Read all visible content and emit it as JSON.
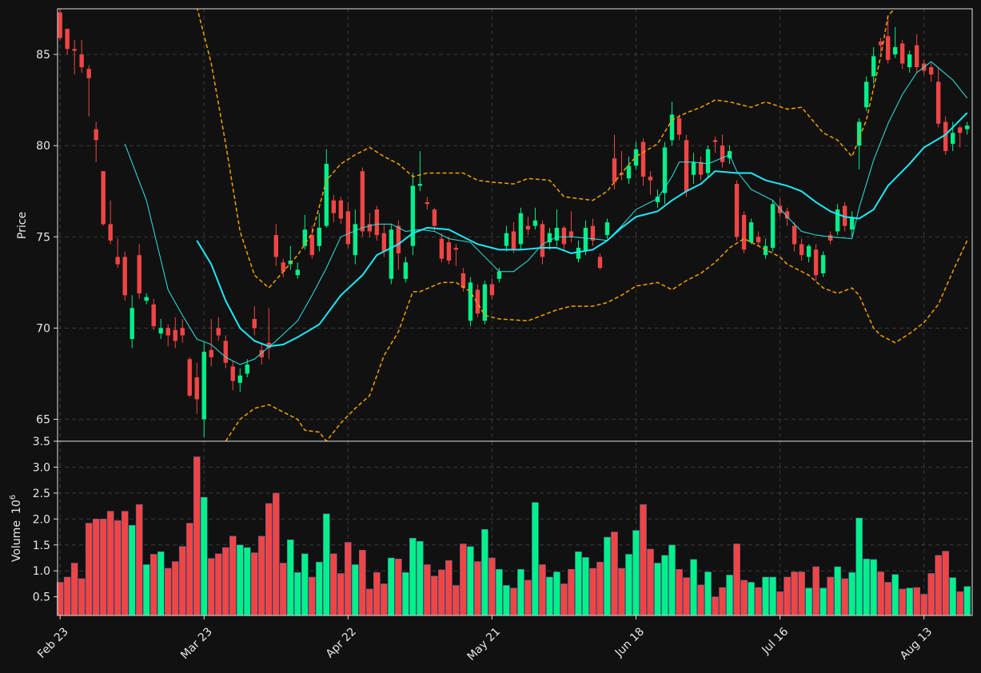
{
  "chart_data": {
    "type": "candlestick",
    "ylabel": "Price",
    "grid": true,
    "up_color": "#00f08a",
    "down_color": "#f04545",
    "ylim": [
      63.8,
      87.5
    ],
    "yticks": [
      65,
      70,
      75,
      80,
      85
    ],
    "categories": [
      "Feb 23",
      null,
      null,
      null,
      null,
      null,
      null,
      null,
      null,
      null,
      null,
      null,
      null,
      null,
      null,
      null,
      null,
      null,
      null,
      null,
      "Mar 23",
      null,
      null,
      null,
      null,
      null,
      null,
      null,
      null,
      null,
      null,
      null,
      null,
      null,
      null,
      null,
      null,
      null,
      null,
      null,
      "Apr 22",
      null,
      null,
      null,
      null,
      null,
      null,
      null,
      null,
      null,
      null,
      null,
      null,
      null,
      null,
      null,
      null,
      null,
      null,
      null,
      "May 21",
      null,
      null,
      null,
      null,
      null,
      null,
      null,
      null,
      null,
      null,
      null,
      null,
      null,
      null,
      null,
      null,
      null,
      null,
      null,
      "Jun 18",
      null,
      null,
      null,
      null,
      null,
      null,
      null,
      null,
      null,
      null,
      null,
      null,
      null,
      null,
      null,
      null,
      null,
      null,
      null,
      "Jul 16",
      null,
      null,
      null,
      null,
      null,
      null,
      null,
      null,
      null,
      null,
      null,
      null,
      null,
      null,
      null,
      null,
      null,
      null,
      null,
      "Aug 13",
      null,
      null,
      null,
      null,
      null,
      null
    ],
    "open": [
      87.3,
      86.4,
      85.3,
      85.0,
      84.2,
      80.9,
      78.6,
      75.7,
      73.9,
      73.9,
      69.4,
      74.0,
      71.5,
      71.3,
      69.7,
      70.0,
      69.9,
      70.0,
      68.3,
      67.3,
      65.0,
      68.8,
      70.0,
      69.3,
      67.9,
      67.0,
      67.5,
      70.5,
      68.8,
      69.2,
      75.1,
      73.6,
      73.5,
      72.9,
      74.5,
      75.1,
      74.5,
      75.6,
      77.0,
      77.0,
      76.4,
      74.0,
      78.6,
      75.7,
      76.5,
      75.2,
      72.7,
      75.6,
      72.7,
      74.5,
      77.8,
      76.9,
      76.5,
      74.9,
      74.7,
      74.4,
      73.0,
      70.4,
      72.1,
      70.4,
      72.4,
      72.7,
      74.5,
      75.3,
      74.6,
      75.6,
      75.6,
      75.7,
      74.7,
      74.8,
      75.5,
      75.3,
      73.8,
      74.2,
      75.6,
      73.9,
      75.1,
      79.3,
      78.5,
      78.2,
      78.9,
      80.2,
      78.3,
      76.9,
      77.4,
      80.3,
      81.5,
      80.3,
      78.4,
      79.1,
      78.5,
      80.3,
      80.0,
      79.3,
      77.9,
      76.2,
      74.7,
      75.0,
      74.0,
      74.4,
      76.7,
      76.4,
      75.6,
      74.6,
      73.9,
      74.3,
      73.0,
      75.1,
      75.3,
      76.7,
      75.4,
      80.0,
      82.1,
      83.8,
      85.7,
      86.0,
      85.0,
      85.6,
      84.3,
      85.5,
      84.5,
      84.3,
      83.5,
      81.3,
      80.1,
      81.0,
      80.9
    ],
    "high": [
      87.5,
      86.4,
      85.8,
      85.8,
      84.4,
      81.3,
      78.6,
      77.0,
      74.9,
      74.2,
      71.8,
      74.6,
      71.9,
      71.6,
      70.5,
      70.2,
      70.6,
      70.5,
      68.4,
      68.1,
      69.2,
      70.5,
      70.6,
      69.6,
      68.2,
      67.8,
      68.3,
      71.2,
      69.2,
      71.1,
      75.7,
      73.8,
      74.5,
      73.6,
      76.2,
      75.6,
      76.3,
      79.8,
      77.3,
      77.2,
      76.9,
      76.5,
      78.8,
      76.3,
      76.7,
      75.7,
      75.7,
      75.9,
      73.9,
      78.5,
      79.7,
      77.2,
      76.6,
      75.2,
      75.0,
      74.6,
      73.3,
      72.8,
      72.4,
      72.6,
      72.7,
      73.3,
      75.6,
      75.8,
      76.6,
      76.1,
      76.6,
      75.9,
      75.5,
      76.5,
      75.6,
      76.4,
      74.8,
      75.9,
      76.0,
      74.1,
      76.0,
      80.6,
      79.7,
      79.4,
      80.2,
      80.4,
      78.6,
      77.6,
      80.2,
      82.4,
      81.7,
      80.6,
      79.6,
      79.4,
      80.0,
      80.5,
      80.6,
      80.0,
      78.1,
      76.4,
      76.0,
      75.3,
      74.9,
      77.0,
      77.1,
      76.6,
      75.8,
      74.9,
      74.6,
      74.6,
      74.2,
      75.3,
      76.8,
      76.9,
      76.4,
      81.5,
      83.8,
      85.4,
      85.9,
      87.1,
      86.5,
      85.8,
      85.2,
      86.1,
      84.7,
      84.5,
      84.3,
      81.6,
      81.3,
      81.1,
      81.3
    ],
    "low": [
      85.8,
      85.0,
      83.9,
      84.0,
      81.6,
      79.1,
      75.6,
      74.6,
      73.3,
      71.5,
      68.9,
      71.6,
      71.3,
      69.9,
      69.4,
      69.0,
      68.9,
      69.2,
      66.2,
      65.3,
      64.0,
      67.9,
      69.3,
      67.8,
      66.6,
      66.5,
      67.3,
      69.6,
      68.0,
      68.3,
      73.4,
      72.8,
      73.2,
      72.7,
      74.3,
      73.8,
      74.2,
      75.5,
      75.8,
      75.7,
      74.4,
      73.5,
      75.0,
      75.0,
      74.8,
      73.9,
      72.4,
      73.2,
      72.5,
      74.0,
      77.5,
      76.5,
      75.3,
      73.6,
      73.5,
      73.4,
      72.0,
      70.1,
      70.6,
      70.2,
      71.6,
      72.5,
      74.2,
      74.1,
      74.3,
      75.1,
      75.4,
      73.5,
      74.3,
      74.5,
      74.3,
      74.7,
      73.6,
      74.0,
      74.5,
      73.2,
      74.9,
      77.6,
      78.1,
      77.9,
      78.7,
      77.8,
      77.3,
      76.6,
      76.8,
      80.0,
      80.3,
      77.2,
      77.9,
      78.1,
      78.2,
      79.6,
      78.8,
      79.0,
      74.8,
      74.1,
      74.6,
      74.5,
      73.8,
      74.2,
      76.1,
      75.6,
      74.2,
      73.7,
      73.6,
      72.6,
      72.8,
      74.6,
      75.1,
      75.3,
      75.0,
      78.7,
      81.9,
      83.4,
      85.1,
      84.5,
      84.8,
      84.2,
      84.0,
      84.0,
      83.9,
      83.5,
      81.0,
      79.5,
      79.7,
      79.9,
      80.6
    ],
    "close": [
      85.9,
      85.3,
      85.2,
      84.3,
      83.7,
      80.3,
      75.7,
      74.8,
      73.5,
      71.8,
      71.1,
      71.9,
      71.7,
      70.1,
      70.0,
      69.6,
      69.3,
      69.6,
      66.3,
      66.1,
      68.7,
      68.4,
      69.6,
      68.1,
      67.1,
      67.4,
      68.0,
      70.0,
      68.4,
      68.9,
      73.9,
      73.1,
      73.7,
      73.2,
      75.4,
      74.0,
      75.5,
      79.0,
      76.3,
      76.0,
      74.6,
      75.7,
      75.3,
      75.3,
      75.1,
      74.2,
      75.4,
      74.1,
      73.6,
      77.8,
      77.9,
      76.8,
      75.6,
      73.8,
      73.7,
      74.3,
      72.2,
      72.5,
      70.8,
      72.4,
      71.8,
      73.1,
      75.2,
      74.3,
      76.3,
      75.4,
      75.9,
      73.9,
      75.2,
      75.5,
      74.6,
      75.0,
      74.4,
      75.5,
      74.8,
      73.3,
      75.8,
      78.0,
      78.4,
      78.9,
      79.8,
      78.3,
      78.1,
      77.2,
      79.9,
      81.7,
      80.6,
      77.5,
      79.1,
      78.4,
      79.8,
      80.2,
      79.1,
      79.7,
      75.0,
      74.3,
      75.8,
      74.7,
      74.5,
      76.8,
      76.3,
      76.0,
      74.6,
      74.0,
      74.5,
      72.9,
      74.0,
      74.8,
      76.5,
      75.6,
      76.1,
      81.3,
      83.5,
      84.9,
      85.5,
      84.7,
      85.4,
      84.5,
      85.0,
      84.3,
      84.1,
      83.9,
      81.2,
      79.7,
      80.7,
      80.7,
      81.1
    ],
    "overlays": [
      {
        "type": "line",
        "color": "#2ee6e6",
        "width": 1,
        "dashed": false,
        "x": [
          9,
          12,
          15,
          17,
          19,
          21,
          23,
          25,
          27,
          30,
          33,
          35,
          37,
          39,
          42,
          44,
          46,
          48,
          50,
          52,
          54,
          57,
          59,
          61,
          63,
          65,
          67,
          69,
          71,
          74,
          76,
          78,
          80,
          83,
          85,
          86,
          88,
          90,
          93,
          94,
          96,
          99,
          101,
          103,
          105,
          107,
          110,
          111,
          113,
          115,
          117,
          119,
          121,
          124,
          126
        ],
        "values": [
          80.1,
          77.0,
          72.1,
          70.7,
          69.4,
          69.1,
          68.4,
          68.0,
          68.3,
          69.3,
          70.4,
          71.8,
          73.3,
          75.0,
          75.5,
          75.7,
          75.7,
          75.3,
          75.4,
          75.3,
          74.9,
          74.7,
          73.9,
          73.1,
          73.1,
          73.7,
          74.6,
          75.0,
          75.0,
          74.9,
          74.8,
          75.6,
          76.5,
          77.1,
          78.3,
          79.1,
          79.1,
          79.0,
          79.5,
          78.6,
          77.6,
          77.0,
          76.1,
          75.3,
          75.1,
          75.0,
          74.9,
          76.6,
          79.2,
          81.2,
          82.8,
          84.0,
          84.6,
          83.6,
          82.6
        ]
      },
      {
        "type": "line",
        "color": "#1ee8f5",
        "width": 2,
        "dashed": false,
        "x": [
          19,
          21,
          23,
          25,
          27,
          29,
          31,
          33,
          36,
          39,
          42,
          44,
          47,
          49,
          51,
          54,
          56,
          58,
          61,
          64,
          67,
          69,
          71,
          74,
          76,
          78,
          80,
          83,
          85,
          87,
          89,
          91,
          94,
          96,
          98,
          101,
          103,
          105,
          107,
          109,
          111,
          113,
          115,
          118,
          120,
          123,
          126
        ],
        "values": [
          74.8,
          73.5,
          71.5,
          70.0,
          69.3,
          69.0,
          69.1,
          69.5,
          70.2,
          71.8,
          72.9,
          74.0,
          74.6,
          75.2,
          75.5,
          75.4,
          75.0,
          74.6,
          74.3,
          74.3,
          74.4,
          74.4,
          74.1,
          74.3,
          74.8,
          75.5,
          76.1,
          76.4,
          77.0,
          77.5,
          77.9,
          78.6,
          78.5,
          78.5,
          78.1,
          77.8,
          77.5,
          76.9,
          76.4,
          76.1,
          76.0,
          76.5,
          77.8,
          79.0,
          79.9,
          80.6,
          81.8
        ]
      },
      {
        "type": "line",
        "color": "#f5a000",
        "width": 1.5,
        "dashed": true,
        "x": [
          19,
          21,
          23,
          25,
          27,
          29,
          31,
          33,
          35,
          37,
          39,
          41,
          43,
          45,
          47,
          49,
          51,
          54,
          56,
          58,
          60,
          63,
          65,
          68,
          70,
          74,
          76,
          78,
          80,
          83,
          85,
          87,
          89,
          91,
          93,
          96,
          98,
          101,
          103,
          106,
          108,
          110,
          112,
          114,
          115,
          117
        ],
        "values": [
          87.6,
          84.5,
          80.1,
          75.3,
          72.9,
          72.2,
          73.1,
          74.0,
          75.2,
          78.1,
          79.0,
          79.5,
          79.9,
          79.4,
          79.0,
          78.3,
          78.5,
          78.5,
          78.5,
          78.1,
          78.0,
          77.9,
          78.2,
          78.1,
          77.2,
          77.0,
          77.5,
          78.5,
          79.4,
          80.1,
          81.4,
          81.8,
          82.1,
          82.5,
          82.4,
          82.1,
          82.4,
          82.0,
          82.1,
          80.7,
          80.3,
          79.4,
          81.4,
          84.9,
          87.1,
          88.0
        ]
      },
      {
        "type": "line",
        "color": "#f5a000",
        "width": 1.5,
        "dashed": true,
        "x": [
          23,
          25,
          27,
          29,
          31,
          33,
          34,
          36,
          37,
          39,
          41,
          43,
          45,
          47,
          49,
          50,
          53,
          55,
          57,
          59,
          61,
          65,
          67,
          69,
          71,
          74,
          76,
          78,
          80,
          83,
          85,
          87,
          89,
          91,
          93,
          95,
          98,
          100,
          101,
          104,
          106,
          108,
          110,
          111,
          113,
          114,
          116,
          118,
          120,
          122,
          124,
          126
        ],
        "values": [
          63.8,
          65.0,
          65.6,
          65.8,
          65.4,
          65.0,
          64.4,
          64.3,
          63.8,
          64.8,
          65.6,
          66.3,
          68.5,
          69.8,
          72.0,
          72.0,
          72.5,
          72.5,
          72.0,
          70.7,
          70.5,
          70.4,
          70.7,
          71.0,
          71.2,
          71.2,
          71.4,
          71.8,
          72.3,
          72.5,
          72.1,
          72.6,
          73.0,
          73.6,
          74.4,
          74.9,
          74.3,
          73.9,
          73.5,
          72.9,
          72.2,
          71.9,
          72.2,
          71.8,
          70.0,
          69.6,
          69.2,
          69.7,
          70.3,
          71.3,
          73.1,
          74.8
        ]
      }
    ],
    "volume": {
      "ylabel": "Volume",
      "scale_base": "10",
      "scale_exp": 6,
      "ylim": [
        0.14,
        3.5
      ],
      "yticks": [
        0.5,
        {
          "value": 1,
          "label": "1.0"
        },
        1.5,
        {
          "value": 2,
          "label": "2.0"
        },
        2.5,
        {
          "value": 3,
          "label": "3.0"
        },
        3.5
      ],
      "values": [
        0.78,
        0.88,
        1.15,
        0.85,
        1.92,
        2.0,
        2.0,
        2.15,
        1.97,
        2.15,
        1.88,
        2.28,
        1.12,
        1.32,
        1.37,
        1.05,
        1.18,
        1.47,
        1.92,
        3.2,
        2.42,
        1.24,
        1.33,
        1.45,
        1.67,
        1.5,
        1.45,
        1.35,
        1.67,
        2.3,
        2.5,
        1.15,
        1.6,
        0.97,
        1.33,
        0.88,
        1.17,
        2.1,
        1.33,
        0.95,
        1.55,
        1.12,
        1.4,
        0.65,
        0.97,
        0.75,
        1.25,
        1.23,
        0.97,
        1.63,
        1.57,
        1.12,
        0.9,
        1.02,
        1.2,
        0.72,
        1.52,
        1.47,
        1.18,
        1.8,
        1.25,
        1.03,
        0.72,
        0.67,
        1.03,
        0.82,
        2.32,
        1.12,
        0.88,
        0.98,
        0.75,
        1.03,
        1.37,
        1.26,
        1.05,
        1.17,
        1.65,
        1.75,
        1.05,
        1.32,
        1.78,
        2.28,
        1.42,
        1.15,
        1.3,
        1.5,
        1.03,
        0.87,
        1.22,
        0.73,
        0.98,
        0.5,
        0.68,
        0.92,
        1.52,
        0.82,
        0.78,
        0.68,
        0.88,
        0.88,
        0.6,
        0.88,
        0.98,
        0.98,
        0.67,
        1.08,
        0.67,
        0.88,
        1.08,
        0.85,
        0.97,
        2.02,
        1.23,
        1.22,
        0.98,
        0.78,
        0.93,
        0.65,
        0.67,
        0.68,
        0.55,
        0.95,
        1.3,
        1.38,
        0.87,
        0.6,
        0.7
      ]
    }
  }
}
